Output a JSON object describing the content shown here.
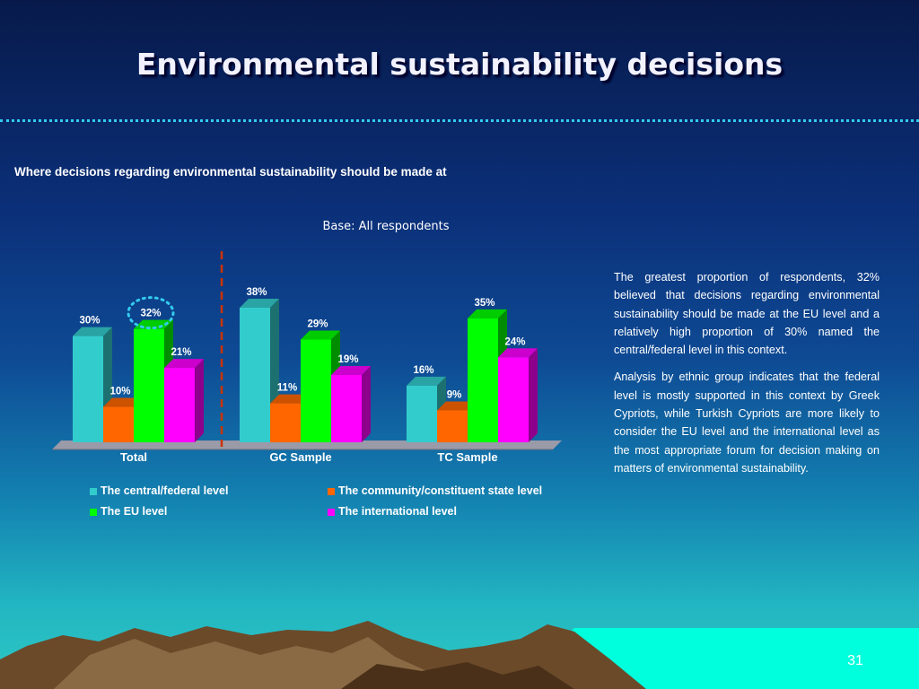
{
  "slide": {
    "title": "Environmental sustainability decisions",
    "subtitle": "Where decisions regarding environmental sustainability should be made at",
    "base_note": "Base: All respondents",
    "page_number": "31"
  },
  "commentary": {
    "paragraphs": [
      "The greatest proportion of respondents, 32% believed that decisions regarding environmental sustainability should be made at the EU level and a relatively high proportion of 30% named the central/federal level in this context.",
      "Analysis by ethnic group indicates that the federal level is mostly supported in this context by Greek Cypriots, while Turkish Cypriots are more likely to consider the EU level and the international level as the most appropriate forum for decision making on matters of environmental sustainability."
    ]
  },
  "chart_data": {
    "type": "bar",
    "categories": [
      "Total",
      "GC Sample",
      "TC Sample"
    ],
    "series": [
      {
        "name": "The central/federal level",
        "values": [
          30,
          38,
          16
        ],
        "labels": [
          "30%",
          "38%",
          "16%"
        ],
        "color": "#33cccc"
      },
      {
        "name": "The community/constituent state level",
        "values": [
          10,
          11,
          9
        ],
        "labels": [
          "10%",
          "11%",
          "9%"
        ],
        "color": "#ff6600"
      },
      {
        "name": "The EU level",
        "values": [
          32,
          29,
          35
        ],
        "labels": [
          "32%",
          "29%",
          "35%"
        ],
        "color": "#00ff00"
      },
      {
        "name": "The international level",
        "values": [
          21,
          19,
          24
        ],
        "labels": [
          "21%",
          "19%",
          "24%"
        ],
        "color": "#ff00ff"
      }
    ],
    "ylim": [
      0,
      40
    ],
    "legend_position": "bottom",
    "highlight": {
      "category": "Total",
      "series": "The EU level",
      "style": "dotted-circle"
    },
    "separator": "dashed line between Total and GC Sample",
    "grid": false
  },
  "colors": {
    "background_top": "#071a4a",
    "background_bottom": "#2fc9c4",
    "accent_dots": "#33ccee"
  }
}
